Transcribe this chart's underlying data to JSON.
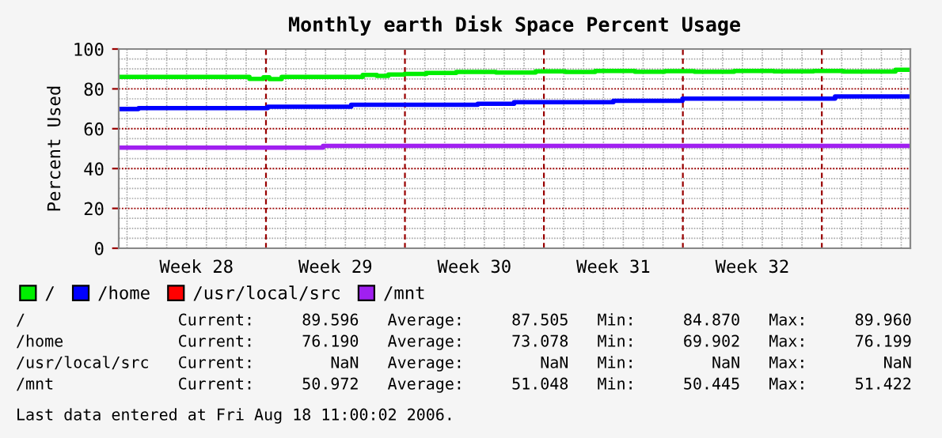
{
  "chart_data": {
    "type": "step",
    "title": "Monthly earth Disk Space Percent Usage",
    "ylabel": "Percent Used",
    "series": [
      {
        "name": "/",
        "color": "#00ee00",
        "x": [
          "2006-07-09T14:00",
          "2006-07-16T04:00",
          "2006-07-16T21:00",
          "2006-07-17T04:00",
          "2006-07-17T19:00",
          "2006-07-21T21:00",
          "2006-07-22T14:00",
          "2006-07-23T04:00",
          "2006-07-23T23:30",
          "2006-07-25T02:00",
          "2006-07-26T14:00",
          "2006-07-28T14:00",
          "2006-07-30T14:00",
          "2006-08-01T02:00",
          "2006-08-02T14:00",
          "2006-08-04T14:00",
          "2006-08-06T02:00",
          "2006-08-07T14:00",
          "2006-08-09T14:00",
          "2006-08-11T14:00",
          "2006-08-13T14:00",
          "2006-08-15T02:00",
          "2006-08-17T17:00",
          "2006-08-18T11:00"
        ],
        "values": [
          86.0,
          85.0,
          85.8,
          84.9,
          86.0,
          87.0,
          86.5,
          87.2,
          87.5,
          88.0,
          88.5,
          88.2,
          88.8,
          88.5,
          89.0,
          88.6,
          88.9,
          88.6,
          89.0,
          88.8,
          89.0,
          88.7,
          89.6,
          89.6
        ]
      },
      {
        "name": "/home",
        "color": "#0000ff",
        "x": [
          "2006-07-09T14:00",
          "2006-07-10T14:00",
          "2006-07-17T02:00",
          "2006-07-21T07:00",
          "2006-07-27T16:00",
          "2006-07-29T12:00",
          "2006-08-03T12:00",
          "2006-08-06T23:30",
          "2006-08-14T16:00",
          "2006-08-18T11:00"
        ],
        "values": [
          69.9,
          70.3,
          71.0,
          72.0,
          72.5,
          73.3,
          74.0,
          75.1,
          76.2,
          76.2
        ]
      },
      {
        "name": "/usr/local/src",
        "color": "#ff0000"
      },
      {
        "name": "/mnt",
        "color": "#a020f0",
        "x": [
          "2006-07-09T14:00",
          "2006-07-19T21:00",
          "2006-08-18T11:00"
        ],
        "values": [
          50.5,
          51.4,
          51.4
        ]
      }
    ],
    "xlim": [
      "2006-07-09T14:00",
      "2006-08-18T11:00"
    ],
    "xticks": [
      {
        "value": "2006-07-13T12:00",
        "label": "Week 28"
      },
      {
        "value": "2006-07-20T12:00",
        "label": "Week 29"
      },
      {
        "value": "2006-07-27T12:00",
        "label": "Week 30"
      },
      {
        "value": "2006-08-03T12:00",
        "label": "Week 31"
      },
      {
        "value": "2006-08-10T12:00",
        "label": "Week 32"
      },
      {
        "value": "2006-07-10",
        "label": null
      },
      {
        "value": "2006-07-11",
        "label": null
      },
      {
        "value": "2006-07-12",
        "label": null
      },
      {
        "value": "2006-07-13",
        "label": null
      },
      {
        "value": "2006-07-14",
        "label": null
      },
      {
        "value": "2006-07-15",
        "label": null
      },
      {
        "value": "2006-07-16",
        "label": null
      },
      {
        "value": "2006-07-18",
        "label": null
      },
      {
        "value": "2006-07-19",
        "label": null
      },
      {
        "value": "2006-07-20",
        "label": null
      },
      {
        "value": "2006-07-21",
        "label": null
      },
      {
        "value": "2006-07-22",
        "label": null
      },
      {
        "value": "2006-07-23",
        "label": null
      },
      {
        "value": "2006-07-25",
        "label": null
      },
      {
        "value": "2006-07-26",
        "label": null
      },
      {
        "value": "2006-07-27",
        "label": null
      },
      {
        "value": "2006-07-28",
        "label": null
      },
      {
        "value": "2006-07-29",
        "label": null
      },
      {
        "value": "2006-07-30",
        "label": null
      },
      {
        "value": "2006-08-01",
        "label": null
      },
      {
        "value": "2006-08-02",
        "label": null
      },
      {
        "value": "2006-08-03",
        "label": null
      },
      {
        "value": "2006-08-04",
        "label": null
      },
      {
        "value": "2006-08-05",
        "label": null
      },
      {
        "value": "2006-08-06",
        "label": null
      },
      {
        "value": "2006-08-08",
        "label": null
      },
      {
        "value": "2006-08-09",
        "label": null
      },
      {
        "value": "2006-08-10",
        "label": null
      },
      {
        "value": "2006-08-11",
        "label": null
      },
      {
        "value": "2006-08-12",
        "label": null
      },
      {
        "value": "2006-08-13",
        "label": null
      },
      {
        "value": "2006-08-15",
        "label": null
      },
      {
        "value": "2006-08-16",
        "label": null
      },
      {
        "value": "2006-08-17",
        "label": null
      },
      {
        "value": "2006-08-18",
        "label": null
      }
    ],
    "ylim": [
      0,
      100
    ],
    "yticks": [
      0,
      20,
      40,
      60,
      80,
      100,
      {
        "value": 5,
        "label": null
      },
      {
        "value": 10,
        "label": null
      },
      {
        "value": 15,
        "label": null
      },
      {
        "value": 25,
        "label": null
      },
      {
        "value": 30,
        "label": null
      },
      {
        "value": 35,
        "label": null
      },
      {
        "value": 45,
        "label": null
      },
      {
        "value": 50,
        "label": null
      },
      {
        "value": 55,
        "label": null
      },
      {
        "value": 65,
        "label": null
      },
      {
        "value": 70,
        "label": null
      },
      {
        "value": 75,
        "label": null
      },
      {
        "value": 85,
        "label": null
      },
      {
        "value": 90,
        "label": null
      },
      {
        "value": 95,
        "label": null
      }
    ],
    "ref_lines": [
      {
        "axis": "x",
        "value": "2006-07-17",
        "color": "#990000",
        "line_style": "dashed"
      },
      {
        "axis": "x",
        "value": "2006-07-24",
        "color": "#990000",
        "line_style": "dashed"
      },
      {
        "axis": "x",
        "value": "2006-07-31",
        "color": "#990000",
        "line_style": "dashed"
      },
      {
        "axis": "x",
        "value": "2006-08-07",
        "color": "#990000",
        "line_style": "dashed"
      },
      {
        "axis": "x",
        "value": "2006-08-14",
        "color": "#990000",
        "line_style": "dashed"
      }
    ],
    "grid": true,
    "legend": "bottom",
    "annotations": [
      "/                Current:     89.596   Average:     87.505   Min:     84.870   Max:     89.960",
      "/home            Current:     76.190   Average:     73.078   Min:     69.902   Max:     76.199",
      "/usr/local/src   Current:        NaN   Average:        NaN   Min:        NaN   Max:        NaN",
      "/mnt             Current:     50.972   Average:     51.048   Min:     50.445   Max:     51.422",
      "Last data entered at Fri Aug 18 11:00:02 2006."
    ]
  }
}
